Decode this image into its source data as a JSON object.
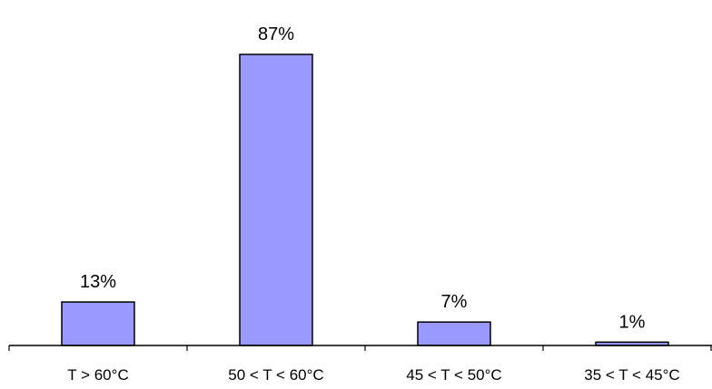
{
  "chart_data": {
    "type": "bar",
    "categories": [
      "T > 60°C",
      "50 < T < 60°C",
      "45 < T < 50°C",
      "35 < T < 45°C"
    ],
    "values": [
      13,
      87,
      7,
      1
    ],
    "value_labels": [
      "13%",
      "87%",
      "7%",
      "1%"
    ],
    "ylim": [
      0,
      87
    ],
    "grid": false,
    "legend": "none",
    "bar_color": "#9999ff",
    "bar_edge_color": "#000000"
  }
}
